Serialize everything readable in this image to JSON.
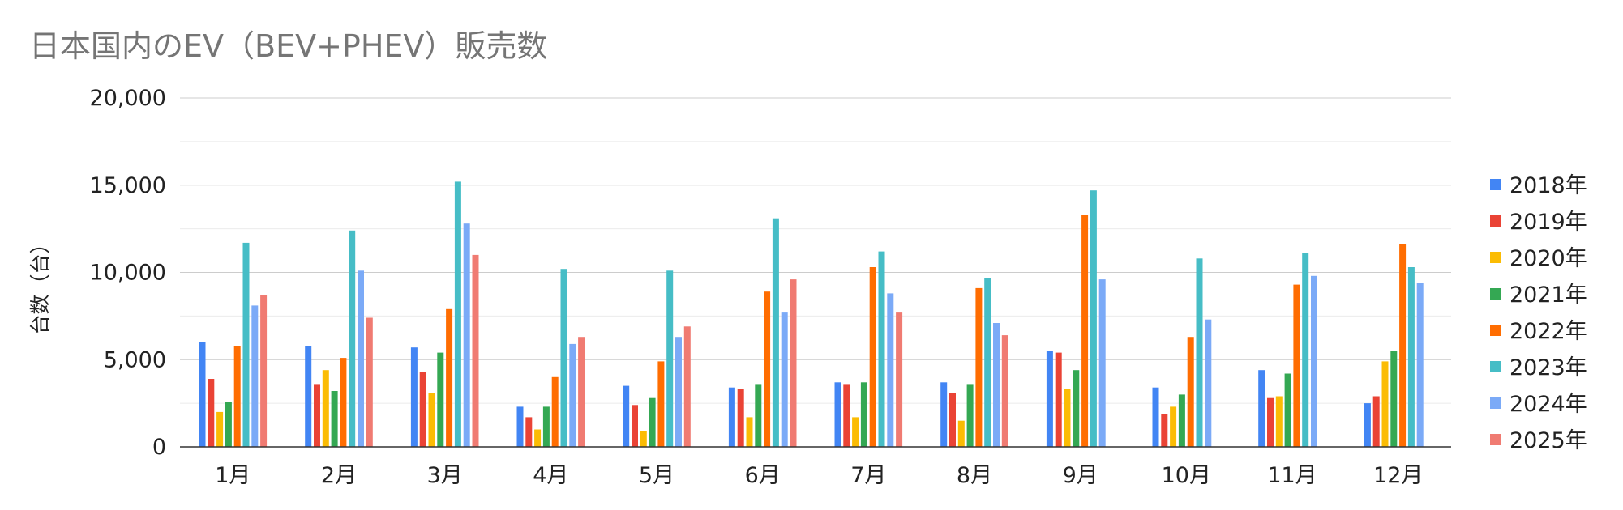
{
  "chart_data": {
    "type": "bar",
    "title": "日本国内のEV（BEV+PHEV）販売数",
    "xlabel": "",
    "ylabel": "台数（台）",
    "ylim": [
      0,
      20000
    ],
    "yticks": [
      "20,000",
      "15,000",
      "10,000",
      "5,000",
      "0"
    ],
    "ytick_values": [
      20000,
      15000,
      10000,
      5000,
      0
    ],
    "grid": true,
    "legend_position": "right",
    "categories": [
      "1月",
      "2月",
      "3月",
      "4月",
      "5月",
      "6月",
      "7月",
      "8月",
      "9月",
      "10月",
      "11月",
      "12月"
    ],
    "series": [
      {
        "name": "2018年",
        "color": "#4285F4",
        "values": [
          6000,
          5800,
          5700,
          2300,
          3500,
          3400,
          3700,
          3700,
          5500,
          3400,
          4400,
          2500
        ]
      },
      {
        "name": "2019年",
        "color": "#EA4335",
        "values": [
          3900,
          3600,
          4300,
          1700,
          2400,
          3300,
          3600,
          3100,
          5400,
          1900,
          2800,
          2900
        ]
      },
      {
        "name": "2020年",
        "color": "#FBBC04",
        "values": [
          2000,
          4400,
          3100,
          1000,
          900,
          1700,
          1700,
          1500,
          3300,
          2300,
          2900,
          4900
        ]
      },
      {
        "name": "2021年",
        "color": "#34A853",
        "values": [
          2600,
          3200,
          5400,
          2300,
          2800,
          3600,
          3700,
          3600,
          4400,
          3000,
          4200,
          5500
        ]
      },
      {
        "name": "2022年",
        "color": "#FF6D01",
        "values": [
          5800,
          5100,
          7900,
          4000,
          4900,
          8900,
          10300,
          9100,
          13300,
          6300,
          9300,
          11600
        ]
      },
      {
        "name": "2023年",
        "color": "#46BDC6",
        "values": [
          11700,
          12400,
          15200,
          10200,
          10100,
          13100,
          11200,
          9700,
          14700,
          10800,
          11100,
          10300
        ]
      },
      {
        "name": "2024年",
        "color": "#7BAAF7",
        "values": [
          8100,
          10100,
          12800,
          5900,
          6300,
          7700,
          8800,
          7100,
          9600,
          7300,
          9800,
          9400
        ]
      },
      {
        "name": "2025年",
        "color": "#F07B72",
        "values": [
          8700,
          7400,
          11000,
          6300,
          6900,
          9600,
          7700,
          6400,
          null,
          null,
          null,
          null
        ]
      }
    ]
  }
}
